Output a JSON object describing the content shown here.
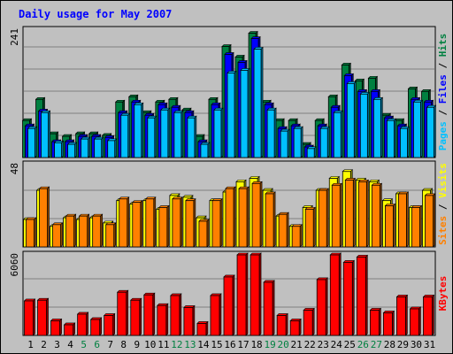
{
  "chart_data": [
    {
      "type": "bar",
      "title": "Daily usage for May 2007",
      "ymax_label": "241",
      "ylim": [
        0,
        241
      ],
      "legend": [
        {
          "text": "Pages",
          "color": "#00c0ff"
        },
        {
          "text": "Files",
          "color": "#0000ff"
        },
        {
          "text": "Hits",
          "color": "#008040"
        }
      ],
      "categories": [
        "1",
        "2",
        "3",
        "4",
        "5",
        "6",
        "7",
        "8",
        "9",
        "10",
        "11",
        "12",
        "13",
        "14",
        "15",
        "16",
        "17",
        "18",
        "19",
        "20",
        "21",
        "22",
        "23",
        "24",
        "25",
        "26",
        "27",
        "28",
        "29",
        "30",
        "31"
      ],
      "series": [
        {
          "name": "Hits",
          "color": "#008040",
          "values": [
            70,
            110,
            45,
            40,
            45,
            45,
            42,
            105,
            115,
            85,
            105,
            110,
            90,
            40,
            110,
            210,
            190,
            235,
            105,
            70,
            70,
            25,
            70,
            115,
            175,
            145,
            150,
            80,
            70,
            130,
            125
          ]
        },
        {
          "name": "Files",
          "color": "#0000ff",
          "values": [
            60,
            88,
            30,
            30,
            40,
            40,
            38,
            85,
            105,
            80,
            100,
            95,
            85,
            30,
            100,
            195,
            180,
            225,
            100,
            55,
            60,
            20,
            60,
            95,
            155,
            125,
            125,
            75,
            60,
            110,
            105
          ]
        },
        {
          "name": "Pages",
          "color": "#00c0ff",
          "values": [
            55,
            85,
            28,
            25,
            35,
            35,
            32,
            80,
            100,
            75,
            90,
            85,
            75,
            25,
            90,
            160,
            165,
            205,
            90,
            50,
            55,
            17,
            55,
            85,
            140,
            120,
            110,
            70,
            55,
            105,
            95
          ]
        }
      ]
    },
    {
      "type": "bar",
      "ymax_label": "48",
      "ylim": [
        0,
        48
      ],
      "legend": [
        {
          "text": "Sites",
          "color": "#ff8000"
        },
        {
          "text": "Visits",
          "color": "#ffff00"
        }
      ],
      "series": [
        {
          "name": "Visits",
          "color": "#ffff00",
          "values": [
            16,
            33,
            12,
            17,
            16,
            17,
            14,
            27,
            25,
            27,
            22,
            30,
            29,
            17,
            27,
            32,
            38,
            40,
            33,
            18,
            12,
            23,
            33,
            40,
            44,
            39,
            38,
            27,
            31,
            23,
            33
          ]
        },
        {
          "name": "Sites",
          "color": "#ff8000",
          "values": [
            16,
            34,
            13,
            18,
            18,
            18,
            13,
            28,
            26,
            28,
            23,
            28,
            27,
            15,
            27,
            34,
            34,
            37,
            31,
            19,
            12,
            22,
            33,
            36,
            39,
            38,
            36,
            24,
            31,
            23,
            30
          ]
        }
      ]
    },
    {
      "type": "bar",
      "ymax_label": "6060",
      "ylim": [
        0,
        6060
      ],
      "legend": [
        {
          "text": "KBytes",
          "color": "#ff0000"
        }
      ],
      "series": [
        {
          "name": "KBytes",
          "color": "#ff0000",
          "values": [
            2600,
            2650,
            1100,
            800,
            1600,
            1200,
            1500,
            3250,
            2650,
            3050,
            2250,
            3000,
            2100,
            900,
            3000,
            4400,
            6060,
            6060,
            4000,
            1500,
            1100,
            1900,
            4200,
            6060,
            5500,
            5900,
            1900,
            1700,
            2900,
            2000,
            2900
          ]
        }
      ]
    }
  ],
  "highlight_color": "#008040",
  "highlight_days": [
    "5",
    "6",
    "12",
    "13",
    "19",
    "20",
    "26",
    "27"
  ],
  "title_color": "#0000ff"
}
